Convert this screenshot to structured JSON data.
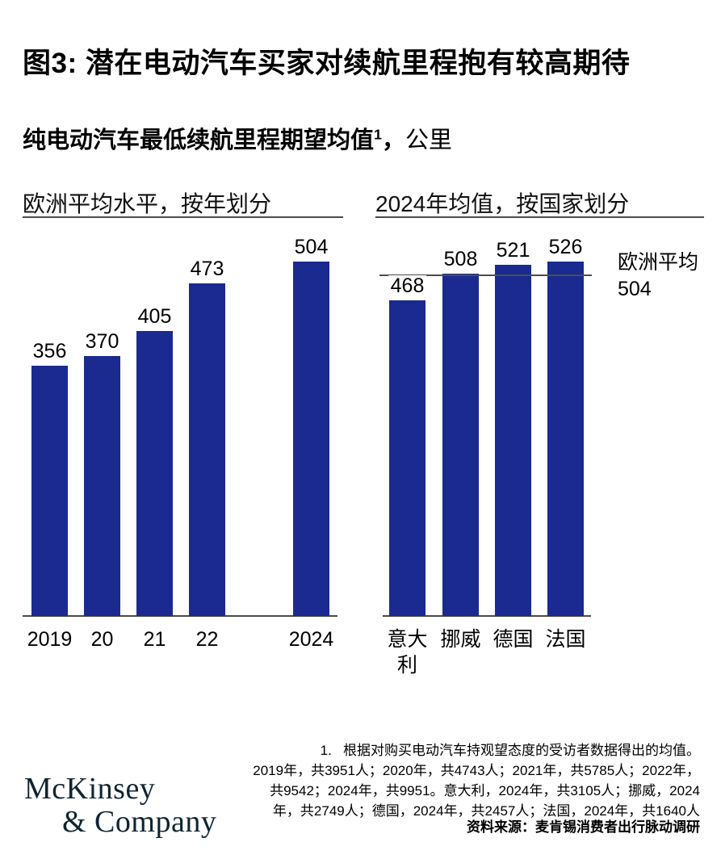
{
  "title": "图3: 潜在电动汽车买家对续航里程抱有较高期待",
  "subtitle": {
    "bold": "纯电动汽车最低续航里程期望均值",
    "sup": "1",
    "comma": "，",
    "unit": "公里"
  },
  "chart_data": [
    {
      "type": "bar",
      "title": "欧洲平均水平，按年划分",
      "categories": [
        "2019",
        "20",
        "21",
        "22",
        "2024"
      ],
      "values": [
        356,
        370,
        405,
        473,
        504
      ],
      "bar_color": "#1a2a90",
      "ylim": [
        0,
        550
      ],
      "grid": "off",
      "note": "2023 has no bar; horizontal gap between 22 and 2024"
    },
    {
      "type": "bar",
      "title": "2024年均值，按国家划分",
      "categories": [
        "意大利",
        "挪威",
        "德国",
        "法国"
      ],
      "values": [
        468,
        508,
        521,
        526
      ],
      "bar_color": "#1a2a90",
      "ylim": [
        0,
        550
      ],
      "grid": "off",
      "reference_line": {
        "value": 504,
        "label_line1": "欧洲平均",
        "label_line2": "504"
      }
    }
  ],
  "footnote": {
    "lines": [
      "1.   根据对购买电动汽车持观望态度的受访者数据得出的均值。",
      "2019年，共3951人；2020年，共4743人；2021年，共5785人；2022年，",
      "共9542；2024年，共9951。意大利，2024年，共3105人；挪威，2024",
      "年，共2749人；德国，2024年，共2457人；法国，2024年，共1640人"
    ],
    "source": "资料来源：麦肯锡消费者出行脉动调研"
  },
  "logo": {
    "line1": "McKinsey",
    "line2": "& Company"
  }
}
